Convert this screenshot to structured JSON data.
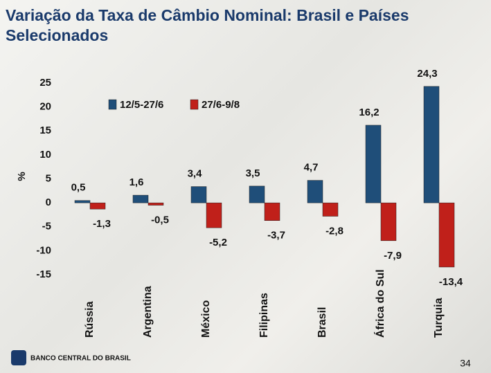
{
  "chart_data": {
    "type": "bar",
    "title": "Variação da Taxa de Câmbio Nominal: Brasil e Países Selecionados",
    "ylabel": "%",
    "categories": [
      "Rússia",
      "Argentina",
      "México",
      "Filipinas",
      "Brasil",
      "África do Sul",
      "Turquia"
    ],
    "series": [
      {
        "name": "12/5-27/6",
        "color": "#1f4e79",
        "values": [
          0.5,
          1.6,
          3.4,
          3.5,
          4.7,
          16.2,
          24.3
        ],
        "value_labels": [
          "0,5",
          "1,6",
          "3,4",
          "3,5",
          "4,7",
          "16,2",
          "24,3"
        ]
      },
      {
        "name": "27/6-9/8",
        "color": "#c0201a",
        "values": [
          -1.3,
          -0.5,
          -5.2,
          -3.7,
          -2.8,
          -7.9,
          -13.4
        ],
        "value_labels": [
          "-1,3",
          "-0,5",
          "-5,2",
          "-3,7",
          "-2,8",
          "-7,9",
          "-13,4"
        ]
      }
    ],
    "ylim": [
      -15,
      25
    ],
    "yticks": [
      25,
      20,
      15,
      10,
      5,
      0,
      -5,
      -10,
      -15
    ],
    "grid": false
  },
  "footer": {
    "bank": "BANCO CENTRAL DO BRASIL",
    "page": "34"
  }
}
